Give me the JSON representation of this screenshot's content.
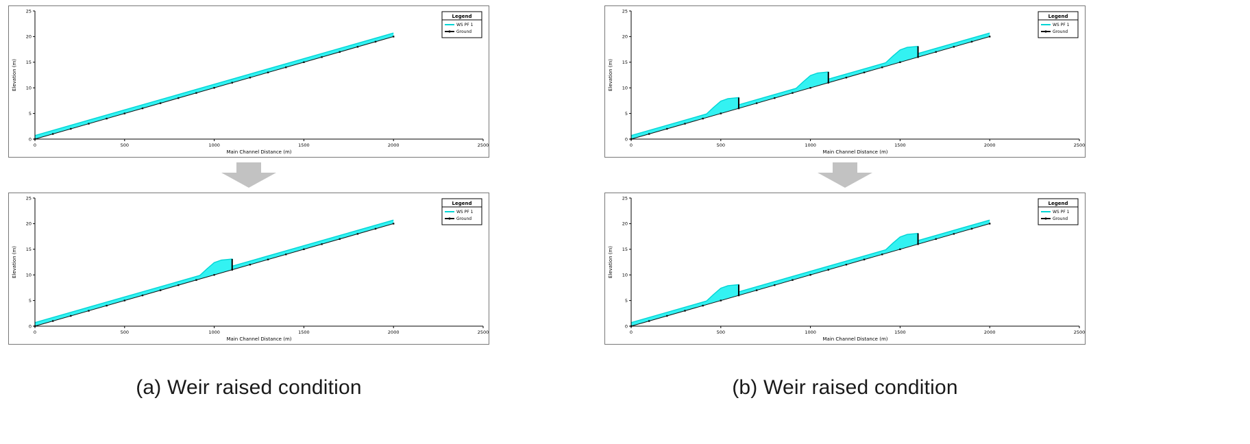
{
  "captions": {
    "a": "(a) Weir raised condition",
    "b": "(b) Weir raised condition"
  },
  "colors": {
    "water_fill": "#33F2F2",
    "water_line": "#00D5D5",
    "ground": "#111111",
    "axis": "#000000",
    "arrow": "#c2c2c2"
  },
  "chart_data": [
    {
      "id": "left-before",
      "type": "area",
      "title": "",
      "xlabel": "Main Channel Distance (m)",
      "ylabel": "Elevation (m)",
      "xlim": [
        0,
        2500
      ],
      "ylim": [
        0,
        25
      ],
      "xticks": [
        0,
        500,
        1000,
        1500,
        2000,
        2500
      ],
      "yticks": [
        0,
        5,
        10,
        15,
        20,
        25
      ],
      "legend": {
        "title": "Legend",
        "entries": [
          {
            "label": "WS PF 1",
            "color": "#00D5D5",
            "marker": "none"
          },
          {
            "label": "Ground",
            "color": "#111111",
            "marker": "dot"
          }
        ]
      },
      "ground": [
        [
          0,
          0
        ],
        [
          2000,
          20
        ]
      ],
      "water_surface": [
        [
          0,
          0.7
        ],
        [
          2000,
          20.7
        ]
      ],
      "weirs": []
    },
    {
      "id": "left-after",
      "type": "area",
      "title": "",
      "xlabel": "Main Channel Distance (m)",
      "ylabel": "Elevation (m)",
      "xlim": [
        0,
        2500
      ],
      "ylim": [
        0,
        25
      ],
      "xticks": [
        0,
        500,
        1000,
        1500,
        2000,
        2500
      ],
      "yticks": [
        0,
        5,
        10,
        15,
        20,
        25
      ],
      "legend": {
        "title": "Legend",
        "entries": [
          {
            "label": "WS PF 1",
            "color": "#00D5D5",
            "marker": "none"
          },
          {
            "label": "Ground",
            "color": "#111111",
            "marker": "dot"
          }
        ]
      },
      "ground": [
        [
          0,
          0
        ],
        [
          2000,
          20
        ]
      ],
      "water_surface": [
        [
          0,
          0.7
        ],
        [
          920,
          9.9
        ],
        [
          960,
          11.2
        ],
        [
          1000,
          12.4
        ],
        [
          1040,
          12.9
        ],
        [
          1100,
          13.1
        ],
        [
          1100,
          11.7
        ],
        [
          2000,
          20.7
        ]
      ],
      "weirs": [
        [
          1100,
          13.1,
          11.0
        ]
      ]
    },
    {
      "id": "right-before",
      "type": "area",
      "title": "",
      "xlabel": "Main Channel Distance (m)",
      "ylabel": "Elevation (m)",
      "xlim": [
        0,
        2500
      ],
      "ylim": [
        0,
        25
      ],
      "xticks": [
        0,
        500,
        1000,
        1500,
        2000,
        2500
      ],
      "yticks": [
        0,
        5,
        10,
        15,
        20,
        25
      ],
      "legend": {
        "title": "Legend",
        "entries": [
          {
            "label": "WS PF 1",
            "color": "#00D5D5",
            "marker": "none"
          },
          {
            "label": "Ground",
            "color": "#111111",
            "marker": "dot"
          }
        ]
      },
      "ground": [
        [
          0,
          0
        ],
        [
          2000,
          20
        ]
      ],
      "water_surface": [
        [
          0,
          0.7
        ],
        [
          420,
          4.9
        ],
        [
          460,
          6.2
        ],
        [
          500,
          7.4
        ],
        [
          540,
          7.9
        ],
        [
          600,
          8.1
        ],
        [
          600,
          6.7
        ],
        [
          920,
          9.9
        ],
        [
          960,
          11.2
        ],
        [
          1000,
          12.4
        ],
        [
          1040,
          12.9
        ],
        [
          1100,
          13.1
        ],
        [
          1100,
          11.7
        ],
        [
          1420,
          14.9
        ],
        [
          1460,
          16.2
        ],
        [
          1500,
          17.4
        ],
        [
          1540,
          17.9
        ],
        [
          1600,
          18.1
        ],
        [
          1600,
          16.7
        ],
        [
          2000,
          20.7
        ]
      ],
      "weirs": [
        [
          600,
          8.1,
          6.0
        ],
        [
          1100,
          13.1,
          11.0
        ],
        [
          1600,
          18.1,
          16.0
        ]
      ]
    },
    {
      "id": "right-after",
      "type": "area",
      "title": "",
      "xlabel": "Main Channel Distance (m)",
      "ylabel": "Elevation (m)",
      "xlim": [
        0,
        2500
      ],
      "ylim": [
        0,
        25
      ],
      "xticks": [
        0,
        500,
        1000,
        1500,
        2000,
        2500
      ],
      "yticks": [
        0,
        5,
        10,
        15,
        20,
        25
      ],
      "legend": {
        "title": "Legend",
        "entries": [
          {
            "label": "WS PF 1",
            "color": "#00D5D5",
            "marker": "none"
          },
          {
            "label": "Ground",
            "color": "#111111",
            "marker": "dot"
          }
        ]
      },
      "ground": [
        [
          0,
          0
        ],
        [
          2000,
          20
        ]
      ],
      "water_surface": [
        [
          0,
          0.7
        ],
        [
          420,
          4.9
        ],
        [
          460,
          6.2
        ],
        [
          500,
          7.4
        ],
        [
          540,
          7.9
        ],
        [
          600,
          8.1
        ],
        [
          600,
          6.7
        ],
        [
          1420,
          14.9
        ],
        [
          1460,
          16.2
        ],
        [
          1500,
          17.4
        ],
        [
          1540,
          17.9
        ],
        [
          1600,
          18.1
        ],
        [
          1600,
          16.7
        ],
        [
          2000,
          20.7
        ]
      ],
      "weirs": [
        [
          600,
          8.1,
          6.0
        ],
        [
          1600,
          18.1,
          16.0
        ]
      ]
    }
  ]
}
